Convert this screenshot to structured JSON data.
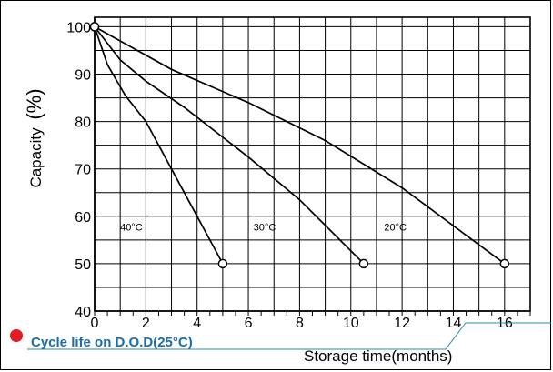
{
  "chart_data": {
    "type": "line",
    "title": "",
    "xlabel": "Storage time(months)",
    "ylabel": "Capacity",
    "ylabel_unit": "(%)",
    "xlim": [
      0,
      17
    ],
    "ylim": [
      40,
      102
    ],
    "x_ticks": [
      0,
      2,
      4,
      6,
      8,
      10,
      12,
      14,
      16
    ],
    "y_ticks": [
      40,
      50,
      60,
      70,
      80,
      90,
      100
    ],
    "grid": true,
    "series": [
      {
        "name": "40°C",
        "points": [
          [
            0,
            100
          ],
          [
            0.5,
            92
          ],
          [
            1.2,
            85.5
          ],
          [
            2,
            80
          ],
          [
            3,
            70
          ],
          [
            4,
            60
          ],
          [
            5,
            50
          ]
        ]
      },
      {
        "name": "30°C",
        "points": [
          [
            0,
            100
          ],
          [
            1,
            93
          ],
          [
            2,
            88.5
          ],
          [
            3.5,
            83
          ],
          [
            6,
            72.5
          ],
          [
            8,
            63.5
          ],
          [
            10.5,
            50
          ]
        ]
      },
      {
        "name": "20°C",
        "points": [
          [
            0,
            100
          ],
          [
            1.5,
            95.5
          ],
          [
            3,
            91
          ],
          [
            6,
            84
          ],
          [
            9,
            76
          ],
          [
            12,
            66
          ],
          [
            16,
            50
          ]
        ]
      }
    ]
  },
  "caption": {
    "text": "Cycle life on D.O.D(25°C)",
    "text_color": "#1a6ea8",
    "bullet_color": "#e31b23",
    "rule_color": "#2a8ab0"
  },
  "colors": {
    "grid": "#000000",
    "line": "#000000"
  }
}
